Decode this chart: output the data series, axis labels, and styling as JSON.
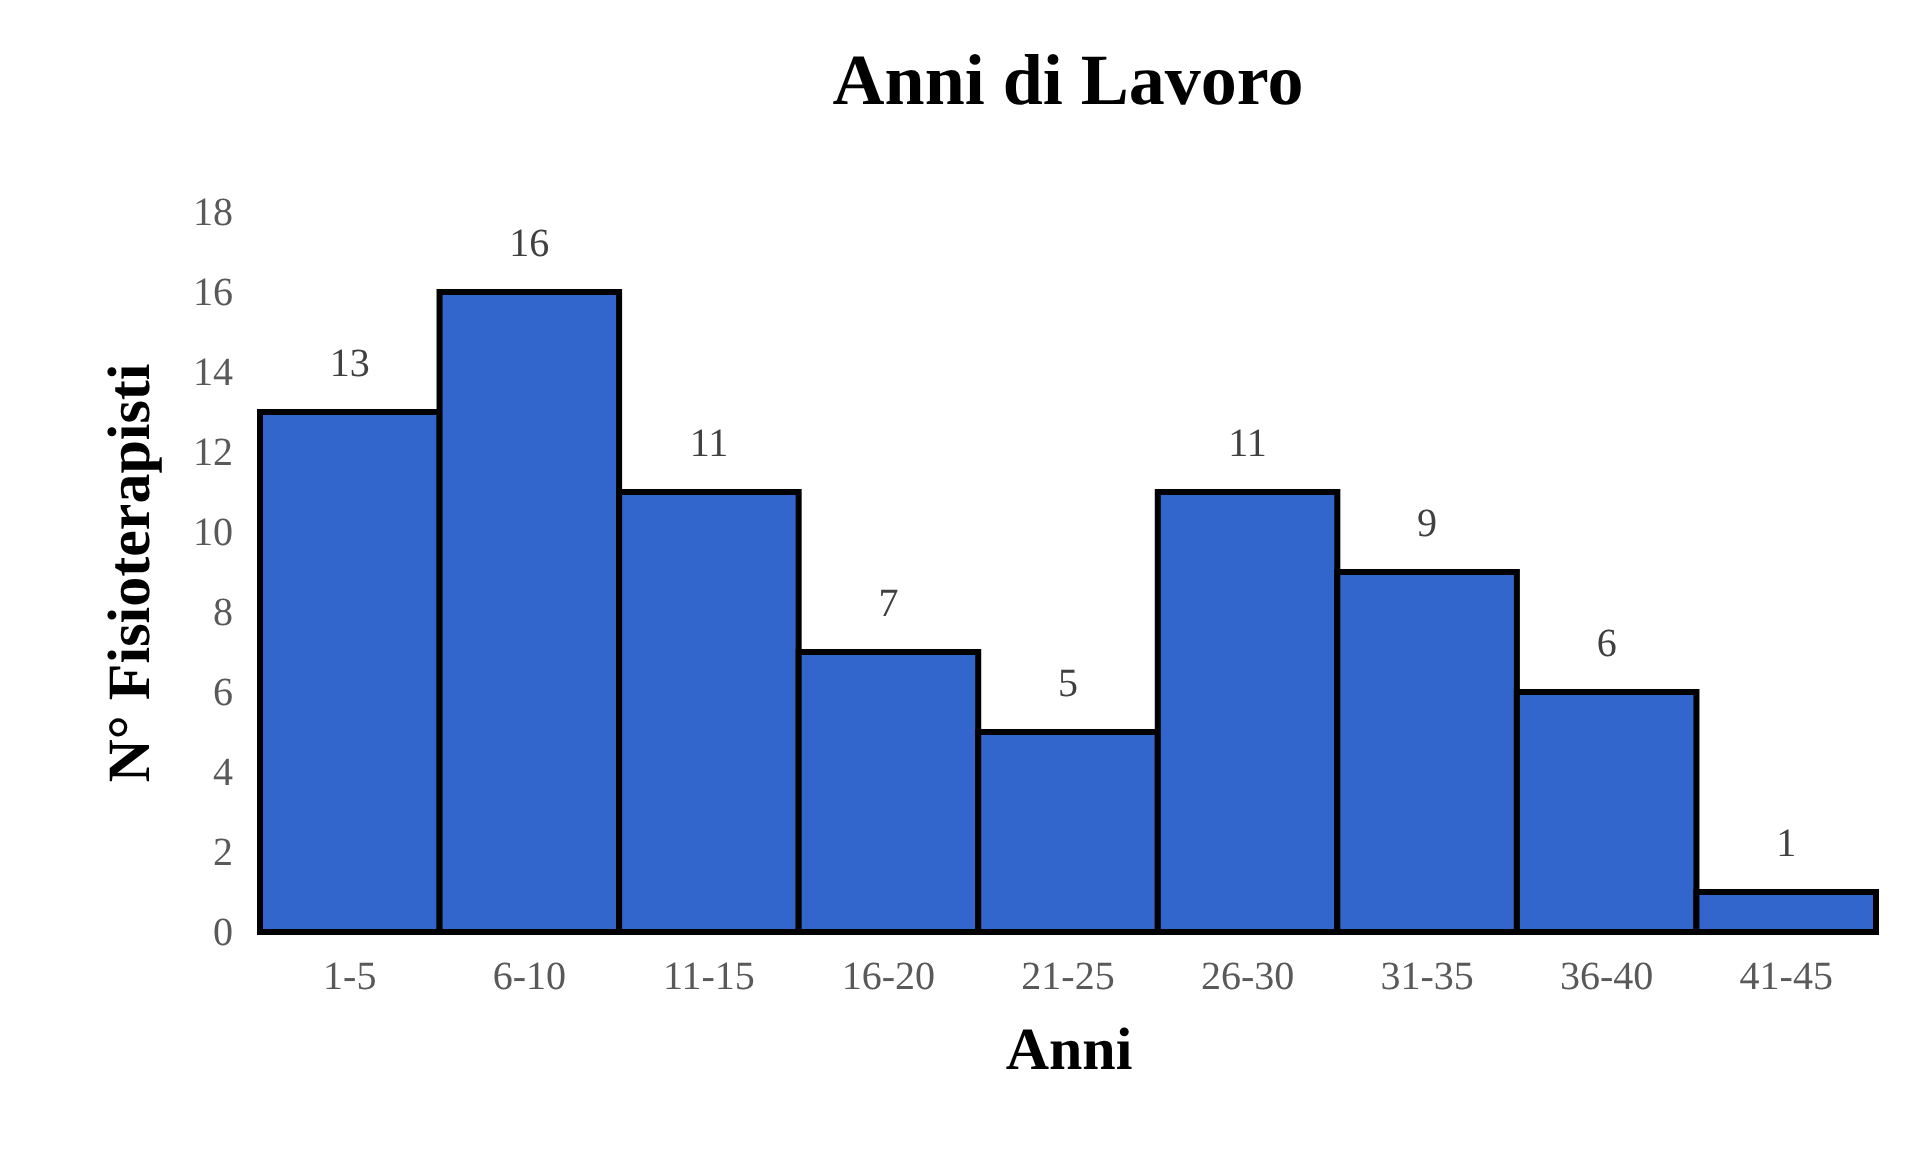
{
  "chart_data": {
    "type": "bar",
    "title": "Anni di Lavoro",
    "xlabel": "Anni",
    "ylabel": "N° Fisioterapisti",
    "categories": [
      "1-5",
      "6-10",
      "11-15",
      "16-20",
      "21-25",
      "26-30",
      "31-35",
      "36-40",
      "41-45"
    ],
    "values": [
      13,
      16,
      11,
      7,
      5,
      11,
      9,
      6,
      1
    ],
    "color": "#3366cc",
    "ylim": [
      0,
      18
    ],
    "yticks": [
      0,
      2,
      4,
      6,
      8,
      10,
      12,
      14,
      16,
      18
    ],
    "data_labels": true
  }
}
